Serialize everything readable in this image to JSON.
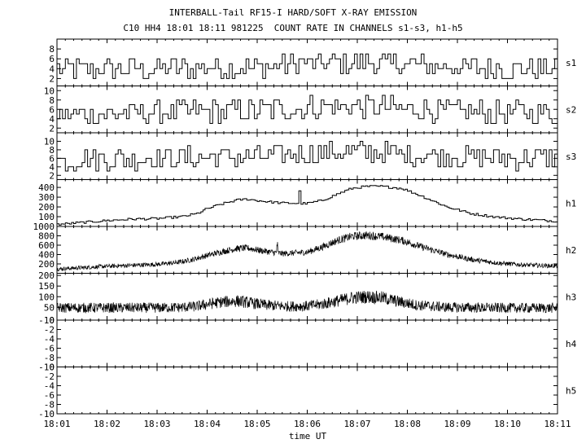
{
  "title_line1": "INTERBALL-Tail RF15-I HARD/SOFT X-RAY EMISSION",
  "title_line2": "C10 HH4 18:01 18:11 981225  COUNT RATE IN CHANNELS s1-s3, h1-h5",
  "chart_data": {
    "type": "line",
    "title": "INTERBALL-Tail RF15-I HARD/SOFT X-RAY EMISSION",
    "subtitle": "C10 HH4 18:01 18:11 981225  COUNT RATE IN CHANNELS s1-s3, h1-h5",
    "xlabel": "time UT",
    "x_ticks": [
      "18:01",
      "18:02",
      "18:03",
      "18:04",
      "18:05",
      "18:06",
      "18:07",
      "18:08",
      "18:09",
      "18:10",
      "18:11"
    ],
    "x_range_min": [
      0,
      10
    ],
    "grid": false,
    "legend": "channel names at right of each panel",
    "panels": [
      {
        "name": "s1",
        "style": "step",
        "ylim": [
          0.5,
          10
        ],
        "yticks": [
          "2",
          "4",
          "6",
          "8"
        ],
        "profile_min": [
          0,
          1,
          2,
          3,
          4,
          5,
          6,
          7,
          8,
          9,
          10
        ],
        "profile_level": [
          3.8,
          3.9,
          4.0,
          4.1,
          4.2,
          5.0,
          5.3,
          4.8,
          4.3,
          4.0,
          4.0
        ],
        "noise_amp": 2.3
      },
      {
        "name": "s2",
        "style": "step",
        "ylim": [
          1,
          11
        ],
        "yticks": [
          "2",
          "4",
          "6",
          "8",
          "10"
        ],
        "profile_min": [
          0,
          1,
          2,
          3,
          4,
          5,
          6,
          7,
          8,
          9,
          10
        ],
        "profile_level": [
          4.8,
          5.0,
          5.2,
          5.6,
          5.6,
          6.4,
          6.8,
          6.2,
          5.6,
          5.2,
          5.2
        ],
        "noise_amp": 2.6
      },
      {
        "name": "s3",
        "style": "step",
        "ylim": [
          1,
          12
        ],
        "yticks": [
          "2",
          "4",
          "6",
          "8",
          "10"
        ],
        "profile_min": [
          0,
          1,
          2,
          3,
          4,
          5,
          6,
          7,
          8,
          9,
          10
        ],
        "profile_level": [
          5.6,
          5.8,
          6.0,
          6.3,
          6.4,
          7.2,
          7.5,
          7.0,
          6.4,
          6.0,
          6.0
        ],
        "noise_amp": 2.7
      },
      {
        "name": "h1",
        "style": "step",
        "ylim": [
          0,
          480
        ],
        "yticks": [
          "100",
          "200",
          "300",
          "400"
        ],
        "profile_min": [
          0,
          0.5,
          1.0,
          1.5,
          2.0,
          2.5,
          2.8,
          3.0,
          3.3,
          3.6,
          3.8,
          4.1,
          4.5,
          5.0,
          5.3,
          5.6,
          5.9,
          6.2,
          6.5,
          6.9,
          7.3,
          7.8,
          8.3,
          8.8,
          9.3,
          9.8,
          10
        ],
        "profile_level": [
          20,
          40,
          60,
          75,
          80,
          100,
          130,
          180,
          230,
          270,
          280,
          260,
          240,
          235,
          265,
          330,
          390,
          410,
          410,
          390,
          310,
          200,
          130,
          95,
          75,
          60,
          55
        ],
        "noise_amp": 12
      },
      {
        "name": "h2",
        "style": "noise",
        "ylim": [
          0,
          1000
        ],
        "yticks": [
          "200",
          "400",
          "600",
          "800",
          "1000"
        ],
        "profile_min": [
          0,
          0.5,
          1.0,
          1.5,
          2.0,
          2.4,
          2.7,
          3.0,
          3.3,
          3.6,
          3.8,
          4.1,
          4.5,
          5.0,
          5.3,
          5.6,
          5.9,
          6.2,
          6.5,
          6.9,
          7.3,
          7.8,
          8.3,
          8.8,
          9.3,
          9.8,
          10
        ],
        "profile_level": [
          90,
          120,
          150,
          170,
          190,
          230,
          290,
          380,
          460,
          530,
          540,
          480,
          420,
          450,
          560,
          700,
          790,
          810,
          780,
          700,
          560,
          400,
          290,
          220,
          180,
          160,
          160
        ],
        "noise_amp": 60
      },
      {
        "name": "h3",
        "style": "noise",
        "ylim": [
          -10,
          210
        ],
        "yticks": [
          "-10",
          "50",
          "100",
          "150",
          "200"
        ],
        "profile_min": [
          0,
          1.0,
          2.0,
          2.5,
          2.8,
          3.0,
          3.3,
          3.6,
          3.9,
          4.2,
          4.6,
          5.0,
          5.3,
          5.6,
          5.9,
          6.2,
          6.5,
          6.8,
          7.2,
          7.8,
          8.5,
          9.3,
          10
        ],
        "profile_level": [
          48,
          48,
          48,
          50,
          55,
          65,
          75,
          80,
          70,
          60,
          55,
          56,
          65,
          80,
          95,
          100,
          95,
          78,
          60,
          50,
          48,
          47,
          47
        ],
        "noise_amp": 28
      },
      {
        "name": "h4",
        "style": "empty",
        "ylim": [
          -10,
          0
        ],
        "yticks": [
          "-10",
          "-8",
          "-6",
          "-4",
          "-2",
          "0"
        ]
      },
      {
        "name": "h5",
        "style": "empty",
        "ylim": [
          -10,
          0
        ],
        "yticks": [
          "-10",
          "-8",
          "-6",
          "-4",
          "-2",
          "0"
        ]
      }
    ]
  }
}
